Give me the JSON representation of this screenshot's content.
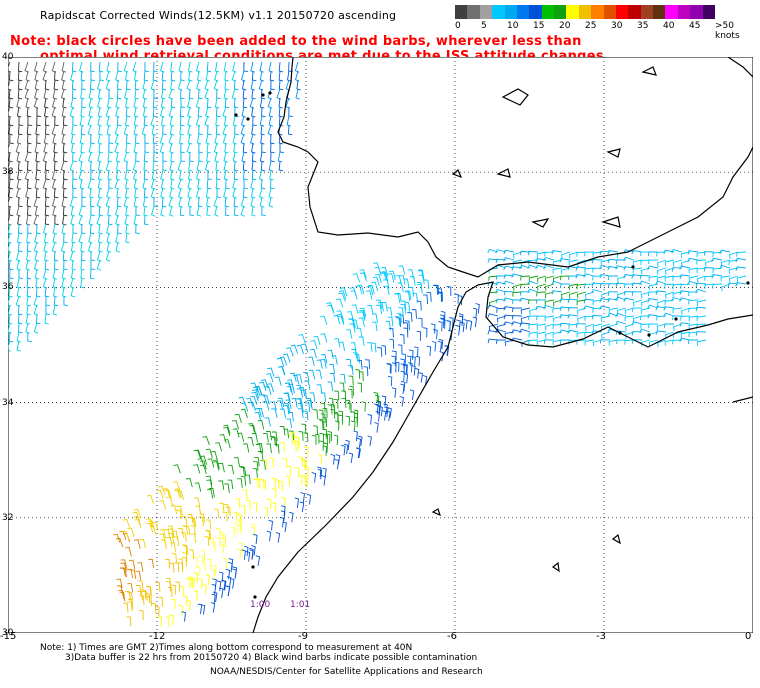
{
  "title": "Rapidscat Corrected Winds(12.5KM) v1.1 20150720 ascending",
  "note": {
    "line1": "Note: black circles have been added to the wind barbs, wherever less than",
    "line2": "optimal wind retrieval conditions are met due to the ISS attitude changes."
  },
  "colorbar": {
    "colors": [
      "#404040",
      "#707070",
      "#a0a0a0",
      "#00c8ff",
      "#00a8f0",
      "#0078f0",
      "#0050d8",
      "#00c000",
      "#10a010",
      "#ffff00",
      "#f0c000",
      "#ff8000",
      "#e05000",
      "#ff0000",
      "#c00000",
      "#a04020",
      "#603010",
      "#ff00ff",
      "#c000c0",
      "#9000b0",
      "#400060"
    ],
    "labels": [
      "0",
      "5",
      "10",
      "15",
      "20",
      "25",
      "30",
      "35",
      "40",
      "45",
      ">50 knots"
    ]
  },
  "axes": {
    "x_ticks": [
      "-15",
      "-12",
      "-9",
      "-6",
      "-3",
      "0"
    ],
    "y_ticks": [
      "40",
      "38",
      "36",
      "34",
      "32",
      "30"
    ],
    "lon_range": [
      -15,
      0
    ],
    "lat_range": [
      30,
      40
    ]
  },
  "time_labels": [
    "1:00",
    "1:01"
  ],
  "footnote": {
    "line1": "Note: 1) Times are GMT 2)Times along bottom correspond to measurement at 40N",
    "line2": "3)Data buffer is 22 hrs from 20150720 4) Black wind barbs indicate possible contamination"
  },
  "credit": "NOAA/NESDIS/Center for Satellite Applications and Research"
}
